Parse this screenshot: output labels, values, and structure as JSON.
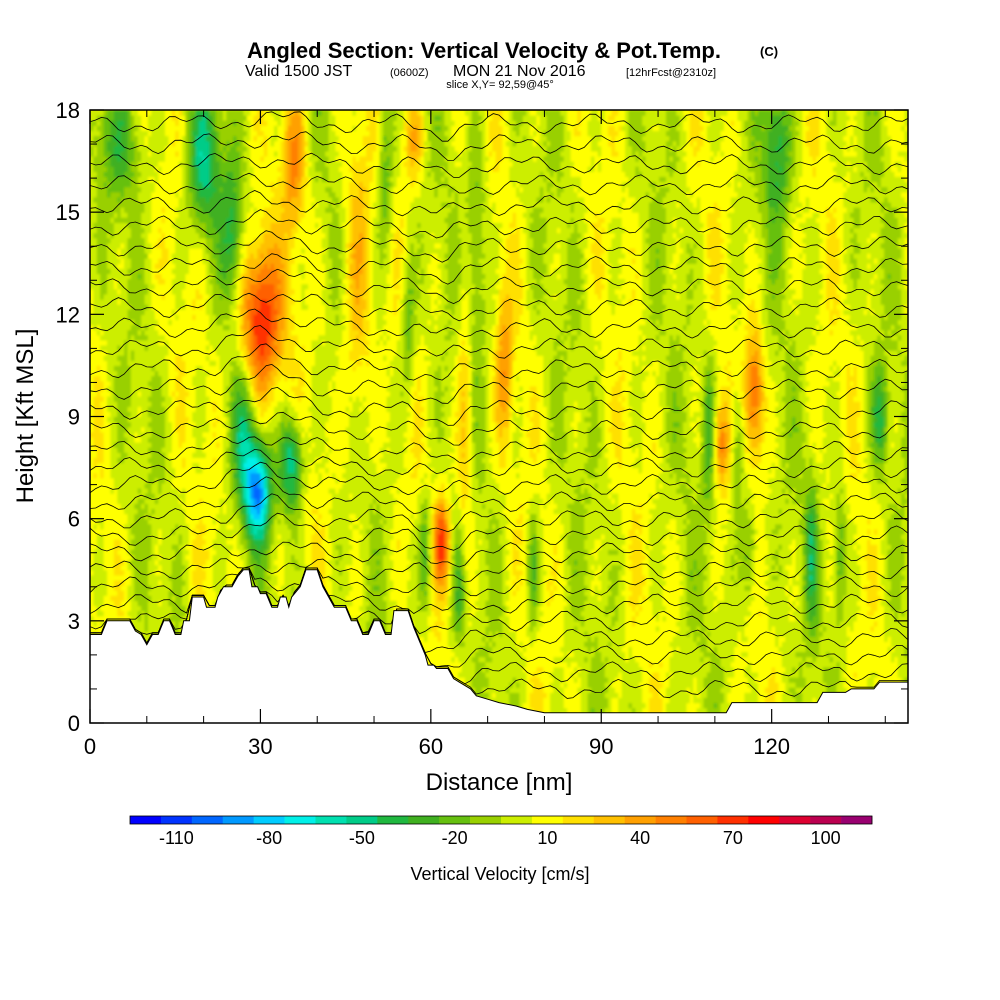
{
  "header": {
    "title_main": "Angled Section: Vertical Velocity & Pot.Temp.",
    "title_mark": "(C)",
    "valid_a": "Valid 1500 JST",
    "valid_zulu": "(0600Z)",
    "valid_b": "MON 21 Nov 2016",
    "valid_fcst": "[12hrFcst@2310z]",
    "slice": "slice X,Y= 92,59@45°"
  },
  "chart_data": {
    "type": "heatmap",
    "title": "Angled Section: Vertical Velocity & Pot.Temp.",
    "xlabel": "Distance [nm]",
    "ylabel": "Height [Kft MSL]",
    "xlim": [
      0,
      144
    ],
    "ylim": [
      0,
      18
    ],
    "x_ticks": [
      0,
      30,
      60,
      90,
      120
    ],
    "y_ticks": [
      0,
      3,
      6,
      9,
      12,
      15,
      18
    ],
    "x_tick_labels": [
      "0",
      "30",
      "60",
      "90",
      "120"
    ],
    "y_tick_labels": [
      "0",
      "3",
      "6",
      "9",
      "12",
      "15",
      "18"
    ],
    "colorbar": {
      "label": "Vertical Velocity [cm/s]",
      "tick_labels": [
        "-110",
        "-80",
        "-50",
        "-20",
        "10",
        "40",
        "70",
        "100"
      ],
      "tick_values": [
        -110,
        -80,
        -50,
        -20,
        10,
        40,
        70,
        100
      ],
      "range": [
        -125,
        115
      ],
      "step": 10,
      "colors": [
        "#0000ff",
        "#0033ff",
        "#0066ff",
        "#0099ff",
        "#00ccff",
        "#00f0e8",
        "#00e0b0",
        "#00cc88",
        "#20b840",
        "#40b020",
        "#66c010",
        "#99d000",
        "#ccee00",
        "#ffff00",
        "#ffe000",
        "#ffc000",
        "#ffa000",
        "#ff8000",
        "#ff6000",
        "#ff3000",
        "#ff0000",
        "#dd0030",
        "#bb0050",
        "#990070"
      ]
    },
    "background_value": 3,
    "updrafts": [
      {
        "x": 30,
        "y": 11.8,
        "sx": 2.6,
        "sy": 1.6,
        "w": 75
      },
      {
        "x": 36,
        "y": 16.5,
        "sx": 1.4,
        "sy": 1.6,
        "w": 38
      },
      {
        "x": 47,
        "y": 13.0,
        "sx": 1.8,
        "sy": 3.5,
        "w": 30
      },
      {
        "x": 62,
        "y": 5.3,
        "sx": 1.0,
        "sy": 0.9,
        "w": 60
      },
      {
        "x": 66,
        "y": 9.0,
        "sx": 1.0,
        "sy": 3.5,
        "w": 28
      },
      {
        "x": 73,
        "y": 10.5,
        "sx": 1.0,
        "sy": 1.5,
        "w": 35
      },
      {
        "x": 111,
        "y": 8.2,
        "sx": 1.0,
        "sy": 0.9,
        "w": 45
      },
      {
        "x": 117,
        "y": 9.7,
        "sx": 1.2,
        "sy": 1.3,
        "w": 55
      },
      {
        "x": 57,
        "y": 17.2,
        "sx": 1.2,
        "sy": 1.0,
        "w": 30
      }
    ],
    "downdrafts": [
      {
        "x": 29.5,
        "y": 6.8,
        "sx": 1.6,
        "sy": 1.0,
        "w": -90
      },
      {
        "x": 35.5,
        "y": 7.6,
        "sx": 1.4,
        "sy": 1.0,
        "w": -60
      },
      {
        "x": 20,
        "y": 16.5,
        "sx": 2.0,
        "sy": 1.5,
        "w": -50
      },
      {
        "x": 25,
        "y": 14.3,
        "sx": 1.4,
        "sy": 1.5,
        "w": -35
      },
      {
        "x": 27,
        "y": 8.5,
        "sx": 1.5,
        "sy": 1.4,
        "w": -40
      },
      {
        "x": 52,
        "y": 16.3,
        "sx": 1.0,
        "sy": 2.0,
        "w": -30
      },
      {
        "x": 56,
        "y": 11.5,
        "sx": 0.9,
        "sy": 1.5,
        "w": -28
      },
      {
        "x": 59,
        "y": 5.0,
        "sx": 0.8,
        "sy": 1.2,
        "w": -35
      },
      {
        "x": 65,
        "y": 3.8,
        "sx": 0.8,
        "sy": 1.2,
        "w": -30
      },
      {
        "x": 68,
        "y": 14.0,
        "sx": 1.3,
        "sy": 2.5,
        "w": -25
      },
      {
        "x": 78,
        "y": 4.5,
        "sx": 0.7,
        "sy": 1.2,
        "w": -30
      },
      {
        "x": 109,
        "y": 8.5,
        "sx": 0.8,
        "sy": 1.5,
        "w": -35
      },
      {
        "x": 114,
        "y": 8.0,
        "sx": 0.8,
        "sy": 1.5,
        "w": -30
      },
      {
        "x": 116,
        "y": 5.0,
        "sx": 1.0,
        "sy": 1.2,
        "w": -30
      },
      {
        "x": 121,
        "y": 17.0,
        "sx": 1.6,
        "sy": 1.6,
        "w": -40
      },
      {
        "x": 127,
        "y": 5.0,
        "sx": 0.8,
        "sy": 1.5,
        "w": -35
      },
      {
        "x": 132,
        "y": 5.0,
        "sx": 0.8,
        "sy": 1.5,
        "w": -30
      },
      {
        "x": 139,
        "y": 9.0,
        "sx": 1.0,
        "sy": 1.0,
        "w": -35
      },
      {
        "x": 5,
        "y": 17.0,
        "sx": 3.0,
        "sy": 1.2,
        "w": -25
      }
    ],
    "terrain_kft": [
      [
        0,
        2.6
      ],
      [
        2,
        2.6
      ],
      [
        3,
        3.0
      ],
      [
        7,
        3.0
      ],
      [
        8,
        2.7
      ],
      [
        9,
        2.6
      ],
      [
        10,
        2.3
      ],
      [
        11,
        2.6
      ],
      [
        12,
        2.6
      ],
      [
        12.5,
        2.8
      ],
      [
        13,
        3.0
      ],
      [
        14,
        3.0
      ],
      [
        14.5,
        2.8
      ],
      [
        15,
        2.6
      ],
      [
        16,
        2.6
      ],
      [
        16.5,
        3.0
      ],
      [
        17.5,
        3.0
      ],
      [
        18,
        3.7
      ],
      [
        20,
        3.7
      ],
      [
        20.5,
        3.4
      ],
      [
        22,
        3.4
      ],
      [
        22.5,
        3.7
      ],
      [
        23.5,
        4.0
      ],
      [
        25,
        4.0
      ],
      [
        26,
        4.3
      ],
      [
        27,
        4.5
      ],
      [
        28,
        4.5
      ],
      [
        28.5,
        4.0
      ],
      [
        29.5,
        4.0
      ],
      [
        30,
        3.8
      ],
      [
        31,
        3.8
      ],
      [
        32,
        3.4
      ],
      [
        33,
        3.4
      ],
      [
        33.5,
        3.7
      ],
      [
        34.5,
        3.7
      ],
      [
        35,
        3.4
      ],
      [
        35.5,
        3.7
      ],
      [
        37,
        4.0
      ],
      [
        38,
        4.5
      ],
      [
        40,
        4.5
      ],
      [
        41,
        4.0
      ],
      [
        42,
        3.7
      ],
      [
        43,
        3.4
      ],
      [
        45,
        3.4
      ],
      [
        46,
        3.0
      ],
      [
        47,
        3.0
      ],
      [
        48,
        2.6
      ],
      [
        49,
        2.6
      ],
      [
        50,
        3.0
      ],
      [
        51,
        3.0
      ],
      [
        52,
        2.6
      ],
      [
        53,
        2.6
      ],
      [
        53.5,
        3.3
      ],
      [
        56,
        3.3
      ],
      [
        57,
        2.8
      ],
      [
        58,
        2.4
      ],
      [
        59,
        2.0
      ],
      [
        59.5,
        1.7
      ],
      [
        60.5,
        1.7
      ],
      [
        61,
        1.6
      ],
      [
        63,
        1.6
      ],
      [
        64,
        1.3
      ],
      [
        65,
        1.2
      ],
      [
        67,
        1.0
      ],
      [
        68,
        0.8
      ],
      [
        70,
        0.7
      ],
      [
        72,
        0.6
      ],
      [
        75,
        0.5
      ],
      [
        77,
        0.4
      ],
      [
        80,
        0.3
      ],
      [
        85,
        0.3
      ],
      [
        95,
        0.3
      ],
      [
        105,
        0.3
      ],
      [
        112,
        0.3
      ],
      [
        113,
        0.6
      ],
      [
        119,
        0.6
      ],
      [
        120,
        0.6
      ],
      [
        128,
        0.6
      ],
      [
        129,
        0.9
      ],
      [
        133,
        0.9
      ],
      [
        134,
        1.0
      ],
      [
        138,
        1.0
      ],
      [
        139,
        1.2
      ],
      [
        144,
        1.2
      ]
    ],
    "isentrope_levels_kft": [
      1.0,
      1.5,
      2.0,
      2.5,
      3.0,
      3.5,
      4.0,
      4.5,
      5.0,
      5.5,
      6.0,
      6.5,
      7.0,
      7.5,
      8.0,
      8.6,
      9.2,
      9.8,
      10.4,
      11.0,
      11.6,
      12.2,
      12.8,
      13.4,
      14.0,
      14.6,
      15.2,
      15.8,
      16.4,
      17.0,
      17.6
    ]
  }
}
